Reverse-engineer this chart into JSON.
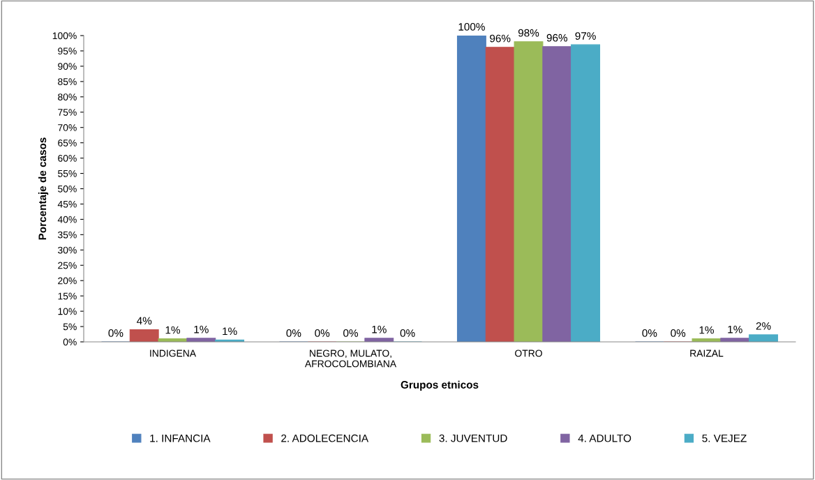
{
  "chart_data": {
    "type": "bar",
    "xlabel": "Grupos etnicos",
    "ylabel": "Porcentaje de casos",
    "categories": [
      "INDIGENA",
      "NEGRO, MULATO,\nAFROCOLOMBIANA",
      "OTRO",
      "RAIZAL"
    ],
    "series": [
      {
        "name": "1. INFANCIA",
        "color": "#4f81bd",
        "values": [
          0,
          0,
          100,
          0
        ],
        "value_labels": [
          "0%",
          "0%",
          "100%",
          "0%"
        ]
      },
      {
        "name": "2. ADOLECENCIA",
        "color": "#c0504d",
        "values": [
          4,
          0,
          96.2,
          0
        ],
        "value_labels": [
          "4%",
          "0%",
          "96%",
          "0%"
        ]
      },
      {
        "name": "3. JUVENTUD",
        "color": "#9bbb59",
        "values": [
          1,
          0,
          98,
          1
        ],
        "value_labels": [
          "1%",
          "0%",
          "98%",
          "1%"
        ]
      },
      {
        "name": "4. ADULTO",
        "color": "#8064a2",
        "values": [
          1.2,
          1.2,
          96.4,
          1.2
        ],
        "value_labels": [
          "1%",
          "1%",
          "96%",
          "1%"
        ]
      },
      {
        "name": "5. VEJEZ",
        "color": "#4bacc6",
        "values": [
          0.6,
          0,
          97,
          2.3
        ],
        "value_labels": [
          "1%",
          "0%",
          "97%",
          "2%"
        ]
      }
    ],
    "ylim": [
      0,
      100
    ],
    "yticks": [
      {
        "value": 0,
        "label": "0%"
      },
      {
        "value": 5,
        "label": "5%"
      },
      {
        "value": 10,
        "label": "10%"
      },
      {
        "value": 15,
        "label": "15%"
      },
      {
        "value": 20,
        "label": "20%"
      },
      {
        "value": 25,
        "label": "25%"
      },
      {
        "value": 30,
        "label": "30%"
      },
      {
        "value": 35,
        "label": "35%"
      },
      {
        "value": 40,
        "label": "40%"
      },
      {
        "value": 45,
        "label": "45%"
      },
      {
        "value": 50,
        "label": "50%"
      },
      {
        "value": 55,
        "label": "55%"
      },
      {
        "value": 60,
        "label": "60%"
      },
      {
        "value": 65,
        "label": "65%"
      },
      {
        "value": 70,
        "label": "70%"
      },
      {
        "value": 75,
        "label": "75%"
      },
      {
        "value": 80,
        "label": "80%"
      },
      {
        "value": 85,
        "label": "85%"
      },
      {
        "value": 90,
        "label": "90%"
      },
      {
        "value": 95,
        "label": "95%"
      },
      {
        "value": 100,
        "label": "100%"
      }
    ],
    "grid": false,
    "legend": "bottom"
  }
}
